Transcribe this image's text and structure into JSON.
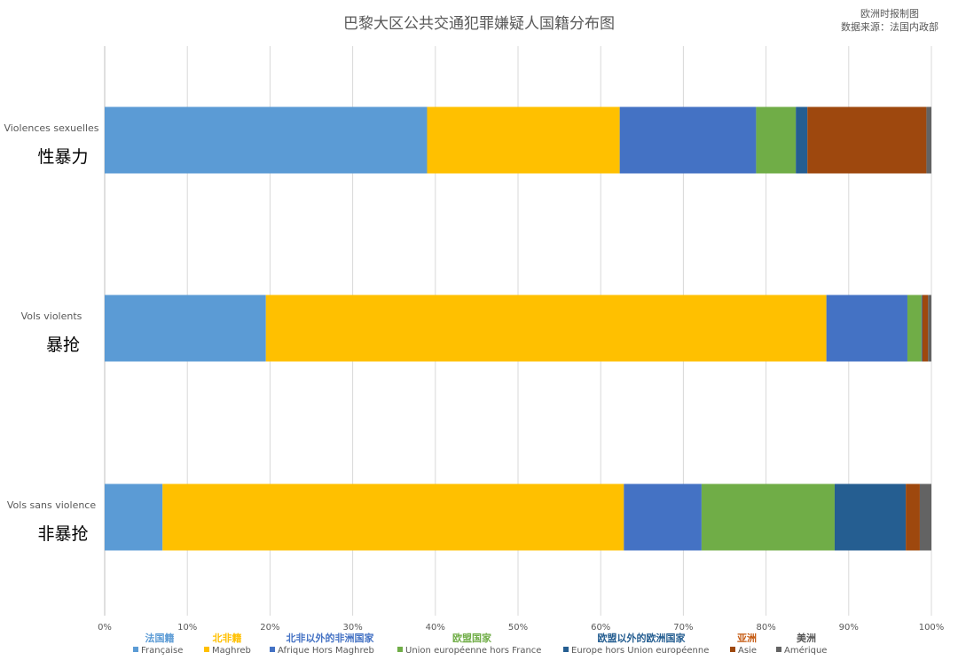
{
  "title": "巴黎大区公共交通犯罪嫌疑人国籍分布图",
  "source": {
    "line1": "欧洲时报制图",
    "line2": "数据来源：法国内政部"
  },
  "chart_data": {
    "type": "bar",
    "orientation": "horizontal",
    "stacked": "percent",
    "title": "巴黎大区公共交通犯罪嫌疑人国籍分布图",
    "xlim": [
      0,
      100
    ],
    "x_ticks": [
      "0%",
      "10%",
      "20%",
      "30%",
      "40%",
      "50%",
      "60%",
      "70%",
      "80%",
      "90%",
      "100%"
    ],
    "grid": true,
    "legend_position": "bottom",
    "categories": [
      {
        "fr": "Violences sexuelles",
        "zh": "性暴力"
      },
      {
        "fr": "Vols violents",
        "zh": "暴抢"
      },
      {
        "fr": "Vols sans violence",
        "zh": "非暴抢"
      }
    ],
    "series": [
      {
        "name": "Française",
        "name_zh": "法国籍",
        "color": "#5B9BD5",
        "label_color": "#5B9BD5",
        "values": [
          39.0,
          19.5,
          7.0
        ]
      },
      {
        "name": "Maghreb",
        "name_zh": "北非籍",
        "color": "#FFC000",
        "label_color": "#FFC000",
        "values": [
          23.3,
          67.8,
          55.8
        ]
      },
      {
        "name": "Afrique Hors Maghreb",
        "name_zh": "北非以外的非洲国家",
        "color": "#4472C4",
        "label_color": "#4472C4",
        "values": [
          16.5,
          9.8,
          9.4
        ]
      },
      {
        "name": "Union européenne hors France",
        "name_zh": "欧盟国家",
        "color": "#70AD47",
        "label_color": "#70AD47",
        "values": [
          4.8,
          1.7,
          16.1
        ]
      },
      {
        "name": "Europe hors Union européenne",
        "name_zh": "欧盟以外的欧洲国家",
        "color": "#255E91",
        "label_color": "#255E91",
        "values": [
          1.4,
          0.1,
          8.6
        ]
      },
      {
        "name": "Asie",
        "name_zh": "亚洲",
        "color": "#9E480E",
        "label_color": "#C55A11",
        "values": [
          14.4,
          0.7,
          1.7
        ]
      },
      {
        "name": "Amérique",
        "name_zh": "美洲",
        "color": "#636363",
        "label_color": "#595959",
        "values": [
          0.6,
          0.4,
          1.4
        ]
      }
    ]
  }
}
